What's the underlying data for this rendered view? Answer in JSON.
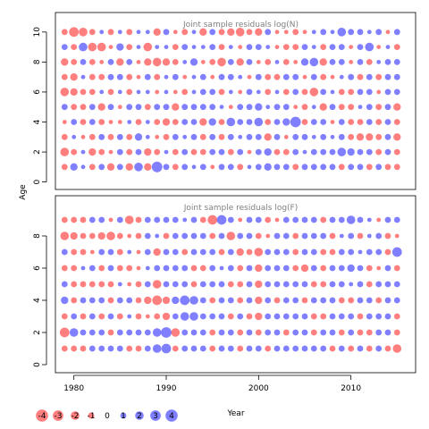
{
  "colors": {
    "positive": "#0000ff",
    "negative": "#ff0000",
    "title": "#808080",
    "axis": "#000000"
  },
  "chart_data": {
    "type": "scatter",
    "subtype": "bubble residual plot",
    "ylabel": "Age",
    "xlabel": "Year",
    "xlim": [
      1978,
      2017
    ],
    "x_ticks": [
      1980,
      1990,
      2000,
      2010
    ],
    "x_tick_labels": [
      "1980",
      "1990",
      "2000",
      "2010"
    ],
    "years": [
      1979,
      1980,
      1981,
      1982,
      1983,
      1984,
      1985,
      1986,
      1987,
      1988,
      1989,
      1990,
      1991,
      1992,
      1993,
      1994,
      1995,
      1996,
      1997,
      1998,
      1999,
      2000,
      2001,
      2002,
      2003,
      2004,
      2005,
      2006,
      2007,
      2008,
      2009,
      2010,
      2011,
      2012,
      2013,
      2014,
      2015
    ],
    "bubble_scale": "radius proportional to sqrt(|residual|); blue = positive, red = negative",
    "legend": {
      "placement": "bottom-left",
      "values": [
        -4,
        -3,
        -2,
        -1,
        0,
        1,
        2,
        3,
        4
      ],
      "labels": [
        "-4",
        "-3",
        "-2",
        "-1",
        "0",
        "1",
        "2",
        "3",
        "4"
      ]
    },
    "panels": [
      {
        "title": "Joint sample residuals log(N)",
        "ages": [
          1,
          2,
          3,
          4,
          5,
          6,
          7,
          8,
          9,
          10
        ],
        "ylim": [
          -0.5,
          11.3
        ],
        "y_ticks": [
          0,
          2,
          4,
          6,
          8,
          10
        ],
        "y_tick_labels": [
          "0",
          "2",
          "4",
          "6",
          "8",
          "10"
        ],
        "residuals": {
          "10": [
            -1,
            -2.5,
            -2,
            -1,
            0.5,
            -1,
            0.5,
            -1,
            0.5,
            0.5,
            -1.5,
            1,
            -0.5,
            -1,
            0.5,
            -1.5,
            1,
            -1,
            -1.5,
            -2,
            -1,
            -1.5,
            1,
            -0.5,
            -0.5,
            -1,
            -0.5,
            0.5,
            1,
            0.5,
            2,
            1,
            1,
            0.5,
            1,
            -0.5,
            1
          ],
          "9": [
            1,
            -1,
            2,
            -2,
            -2,
            -0.5,
            1.5,
            -1,
            0.5,
            -2,
            0.5,
            0.5,
            -1,
            1,
            0.5,
            0.5,
            1,
            -1,
            0.5,
            -0.5,
            1,
            1,
            0.5,
            -0.5,
            -1,
            -1,
            1,
            0.5,
            -1,
            1,
            1,
            -0.5,
            1,
            2,
            -0.5,
            0.5,
            -1
          ],
          "8": [
            -1.5,
            -1,
            1,
            -1,
            -0.5,
            1,
            -1.5,
            1,
            -0.5,
            -1.5,
            -2,
            -1.5,
            -1,
            0.5,
            1.5,
            -0.5,
            -1,
            -2,
            1,
            -1.5,
            1,
            -0.5,
            -1,
            0.5,
            -1,
            -0.5,
            1.5,
            2,
            -1.5,
            1,
            1,
            -0.5,
            1,
            -1,
            0.5,
            1,
            1
          ],
          "7": [
            -1,
            -1.5,
            0.5,
            -1,
            -1,
            1,
            1,
            -1,
            -0.5,
            1,
            -1,
            0.5,
            1,
            -0.5,
            0.5,
            1,
            -0.5,
            1,
            1,
            0.5,
            -0.5,
            1,
            -1,
            -1,
            1,
            1,
            -0.5,
            1,
            -1,
            -0.5,
            0.5,
            1,
            -1,
            1,
            -1,
            1,
            1
          ],
          "6": [
            -2,
            -1.5,
            -1,
            -1,
            0.5,
            -1,
            0.5,
            -1,
            0.5,
            0.5,
            -0.5,
            0.5,
            -0.5,
            -1,
            0.5,
            1,
            1,
            -1,
            0.5,
            -0.5,
            1,
            0.5,
            -1,
            0.5,
            -1,
            1,
            -1,
            -2,
            1,
            0.5,
            -1,
            -1,
            1,
            1,
            -0.5,
            1,
            1
          ],
          "5": [
            1,
            -1,
            -1,
            1,
            -1.5,
            1,
            -0.5,
            1,
            1,
            -1,
            1,
            1,
            -1.5,
            1,
            1,
            1,
            1,
            0.5,
            -0.5,
            1,
            1,
            1.5,
            0.5,
            1,
            1,
            -0.5,
            -1,
            0.5,
            -1.5,
            1,
            -1,
            -1,
            0.5,
            1,
            -1,
            1,
            -1.5
          ],
          "4": [
            -0.5,
            1,
            -1,
            1,
            -1,
            -0.5,
            -0.5,
            0.5,
            -1,
            0.5,
            -1,
            -1.5,
            -1,
            1,
            1,
            -1.5,
            1.5,
            -1,
            2,
            1,
            1,
            2,
            -1,
            1,
            1.5,
            3,
            -1,
            1,
            1,
            -0.5,
            1,
            -1,
            -1,
            1,
            -1,
            1,
            -1
          ],
          "3": [
            -1,
            0.5,
            -0.5,
            -1,
            1,
            -1,
            1,
            -1,
            1.5,
            0.5,
            -0.5,
            -1,
            1,
            0.5,
            1,
            -1,
            1,
            -1,
            1,
            0.5,
            1,
            1,
            -1.5,
            1,
            -0.5,
            1,
            1,
            0.5,
            1,
            0.5,
            1,
            -1,
            -1.5,
            -1.5,
            -1,
            1,
            -1.5
          ],
          "2": [
            -2,
            -1,
            0.5,
            -1.5,
            -1,
            -0.5,
            1,
            -1,
            1,
            -1.5,
            -1,
            0.5,
            -1,
            1,
            -1,
            -1,
            1,
            1,
            -1,
            1,
            -0.5,
            1,
            1.5,
            -1,
            -1,
            1,
            0.5,
            1,
            1,
            1,
            2,
            1.5,
            1,
            1,
            -1,
            1,
            -1
          ],
          "1": [
            -1,
            1.5,
            0.5,
            -1,
            1,
            -1.5,
            1,
            -1.5,
            2,
            -1.5,
            3,
            1,
            -1,
            1,
            0.5,
            1,
            -0.5,
            1,
            1,
            -1,
            0.5,
            1,
            1.5,
            1,
            1,
            -1,
            1,
            1,
            1,
            1,
            -1,
            1,
            1,
            -1,
            1,
            -1,
            -1
          ]
        }
      },
      {
        "title": "Joint sample residuals log(F)",
        "ages": [
          1,
          2,
          3,
          4,
          5,
          6,
          7,
          8,
          9
        ],
        "ylim": [
          -0.5,
          10.5
        ],
        "y_ticks": [
          0,
          2,
          4,
          6,
          8
        ],
        "y_tick_labels": [
          "0",
          "2",
          "4",
          "6",
          "8"
        ],
        "residuals": {
          "9": [
            -1,
            -1,
            -1,
            1,
            1,
            -0.5,
            1,
            -2,
            -1,
            1,
            1,
            1,
            1,
            0.5,
            1,
            -1,
            -2.5,
            2.5,
            1,
            -0.5,
            1,
            1,
            -1,
            -0.5,
            1,
            1,
            1,
            1,
            -1,
            1,
            1,
            2,
            1,
            0.5,
            -0.5,
            1,
            1
          ],
          "8": [
            -2,
            -1.5,
            -1,
            -1,
            -1.5,
            -2,
            -1,
            -0.5,
            -1,
            1,
            0.5,
            -1,
            1,
            1,
            1,
            1,
            -1,
            1,
            -2,
            1,
            1,
            -1,
            -0.5,
            1,
            1,
            -1,
            1,
            1,
            1,
            -1,
            0.5,
            1,
            -1,
            0.5,
            1,
            -1,
            -0.5
          ],
          "7": [
            1,
            -1,
            -1,
            -0.5,
            1,
            1,
            -1,
            0.5,
            -0.5,
            1,
            -1.5,
            1,
            1,
            -1,
            1,
            1,
            1,
            -1,
            1,
            -1.5,
            -1,
            -2,
            1,
            1,
            1,
            -1,
            1,
            1,
            -1,
            -1,
            1,
            1,
            0.5,
            1,
            1,
            -1,
            2.5
          ],
          "6": [
            -1,
            -1,
            0.5,
            1,
            -1,
            1,
            -1,
            -1,
            -0.5,
            0.5,
            1,
            1,
            1,
            1,
            -1,
            -1,
            1,
            0.5,
            1,
            -1,
            1,
            -1.5,
            1,
            1,
            1,
            -1,
            -1.5,
            1,
            -1,
            1,
            1,
            1.5,
            1,
            -1,
            -0.5,
            1,
            -1
          ],
          "5": [
            1,
            -1,
            -1,
            -1,
            -1,
            -1,
            0.5,
            -0.5,
            -1,
            1,
            -2,
            1,
            1,
            1,
            -1,
            1,
            1,
            1,
            -1,
            -1,
            1,
            -1.5,
            1,
            1,
            1,
            1,
            1,
            -1,
            -1,
            1,
            1,
            0.5,
            1,
            -1,
            1,
            1,
            1
          ],
          "4": [
            1.5,
            -1,
            1,
            1,
            1,
            -1,
            1,
            1,
            -1,
            -1.5,
            -2.5,
            -1.5,
            1.5,
            2.5,
            2,
            1,
            -1,
            1,
            1,
            -1,
            1,
            -1.5,
            1,
            -1,
            1,
            1,
            -1,
            1,
            1,
            1,
            -1,
            -1,
            1,
            1,
            -1,
            1,
            1
          ],
          "3": [
            -1,
            1,
            -1,
            1,
            -1,
            1,
            -1,
            0.5,
            -1,
            -0.5,
            -1,
            -1.5,
            1,
            2,
            2,
            1,
            1,
            1,
            -1,
            1,
            -1,
            -1.5,
            1,
            1,
            1,
            1,
            1,
            -1,
            -1,
            1,
            1,
            1,
            -1,
            1,
            1,
            1,
            -1
          ],
          "2": [
            -2.5,
            2,
            1,
            1,
            1,
            -1,
            1,
            1,
            1,
            1,
            2,
            3,
            -2,
            1,
            1,
            1,
            -1,
            1,
            1,
            -1,
            1,
            -1,
            1,
            1,
            -1,
            1,
            1,
            -1,
            1,
            1,
            -1,
            1,
            -1,
            -1,
            1,
            1,
            -1
          ],
          "1": [
            -1,
            -1,
            -1,
            1,
            1,
            1,
            1,
            -1,
            -1,
            1,
            2,
            2.5,
            -1,
            1,
            1,
            1,
            -1,
            1,
            1,
            -1,
            1,
            1,
            -1,
            1,
            1,
            1,
            1,
            1,
            1,
            -1,
            1,
            -1,
            1,
            -1,
            1,
            -1,
            -2
          ]
        }
      }
    ]
  }
}
